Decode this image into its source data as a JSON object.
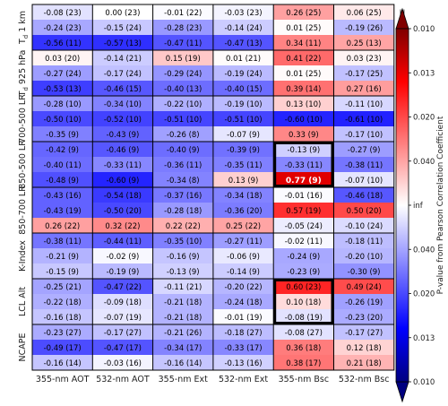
{
  "chart_data": {
    "type": "heatmap",
    "columns": [
      "355-nm AOT",
      "532-nm AOT",
      "355-nm Ext",
      "532-nm Ext",
      "355-nm Bsc",
      "532-nm Bsc"
    ],
    "groups": [
      {
        "label": "T_d 1 km",
        "label_main": "T",
        "label_sub": "d",
        "label_rest": " 1 km"
      },
      {
        "label": "T_d 925 hPa",
        "label_main": "T",
        "label_sub": "d",
        "label_rest": " 925 hPa"
      },
      {
        "label": "700-500 LR"
      },
      {
        "label": "850-500 LR"
      },
      {
        "label": "850-700 LR"
      },
      {
        "label": "K-Index"
      },
      {
        "label": "LCL Alt"
      },
      {
        "label": "NCAPE"
      }
    ],
    "levels": [
      "H",
      "M",
      "L"
    ],
    "cells": [
      [
        [
          -0.08,
          23
        ],
        [
          0.0,
          23
        ],
        [
          -0.01,
          22
        ],
        [
          -0.03,
          23
        ],
        [
          0.26,
          25
        ],
        [
          0.06,
          25
        ]
      ],
      [
        [
          -0.24,
          23
        ],
        [
          -0.15,
          24
        ],
        [
          -0.28,
          23
        ],
        [
          -0.14,
          24
        ],
        [
          0.01,
          25
        ],
        [
          -0.19,
          26
        ]
      ],
      [
        [
          -0.56,
          11
        ],
        [
          -0.57,
          13
        ],
        [
          -0.47,
          11
        ],
        [
          -0.47,
          13
        ],
        [
          0.34,
          11
        ],
        [
          0.25,
          13
        ]
      ],
      [
        [
          0.03,
          20
        ],
        [
          -0.14,
          21
        ],
        [
          0.15,
          19
        ],
        [
          0.01,
          21
        ],
        [
          0.41,
          22
        ],
        [
          0.03,
          23
        ]
      ],
      [
        [
          -0.27,
          24
        ],
        [
          -0.17,
          24
        ],
        [
          -0.29,
          24
        ],
        [
          -0.19,
          24
        ],
        [
          0.01,
          25
        ],
        [
          -0.17,
          25
        ]
      ],
      [
        [
          -0.53,
          13
        ],
        [
          -0.46,
          15
        ],
        [
          -0.4,
          13
        ],
        [
          -0.4,
          15
        ],
        [
          0.39,
          14
        ],
        [
          0.27,
          16
        ]
      ],
      [
        [
          -0.28,
          10
        ],
        [
          -0.34,
          10
        ],
        [
          -0.22,
          10
        ],
        [
          -0.19,
          10
        ],
        [
          0.13,
          10
        ],
        [
          -0.11,
          10
        ]
      ],
      [
        [
          -0.5,
          10
        ],
        [
          -0.52,
          10
        ],
        [
          -0.51,
          10
        ],
        [
          -0.51,
          10
        ],
        [
          -0.6,
          10
        ],
        [
          -0.61,
          10
        ]
      ],
      [
        [
          -0.35,
          9
        ],
        [
          -0.43,
          9
        ],
        [
          -0.26,
          8
        ],
        [
          -0.07,
          9
        ],
        [
          0.33,
          9
        ],
        [
          -0.17,
          10
        ]
      ],
      [
        [
          -0.42,
          9
        ],
        [
          -0.46,
          9
        ],
        [
          -0.4,
          9
        ],
        [
          -0.39,
          9
        ],
        [
          -0.13,
          9
        ],
        [
          -0.27,
          9
        ]
      ],
      [
        [
          -0.4,
          11
        ],
        [
          -0.33,
          11
        ],
        [
          -0.36,
          11
        ],
        [
          -0.35,
          11
        ],
        [
          -0.33,
          11
        ],
        [
          -0.38,
          11
        ]
      ],
      [
        [
          -0.48,
          9
        ],
        [
          -0.6,
          9
        ],
        [
          -0.34,
          8
        ],
        [
          0.13,
          9
        ],
        [
          0.77,
          9
        ],
        [
          -0.07,
          10
        ]
      ],
      [
        [
          -0.43,
          16
        ],
        [
          -0.54,
          18
        ],
        [
          -0.37,
          16
        ],
        [
          -0.34,
          18
        ],
        [
          -0.01,
          16
        ],
        [
          -0.46,
          18
        ]
      ],
      [
        [
          -0.43,
          19
        ],
        [
          -0.5,
          20
        ],
        [
          -0.28,
          18
        ],
        [
          -0.36,
          20
        ],
        [
          0.57,
          19
        ],
        [
          0.5,
          20
        ]
      ],
      [
        [
          0.26,
          22
        ],
        [
          0.32,
          22
        ],
        [
          0.22,
          22
        ],
        [
          0.25,
          22
        ],
        [
          -0.05,
          24
        ],
        [
          -0.1,
          24
        ]
      ],
      [
        [
          -0.38,
          11
        ],
        [
          -0.44,
          11
        ],
        [
          -0.35,
          10
        ],
        [
          -0.27,
          11
        ],
        [
          -0.02,
          11
        ],
        [
          -0.18,
          11
        ]
      ],
      [
        [
          -0.21,
          9
        ],
        [
          -0.02,
          9
        ],
        [
          -0.16,
          9
        ],
        [
          -0.06,
          9
        ],
        [
          -0.24,
          9
        ],
        [
          -0.2,
          10
        ]
      ],
      [
        [
          -0.15,
          9
        ],
        [
          -0.19,
          9
        ],
        [
          -0.13,
          9
        ],
        [
          -0.14,
          9
        ],
        [
          -0.23,
          9
        ],
        [
          -0.3,
          9
        ]
      ],
      [
        [
          -0.25,
          21
        ],
        [
          -0.47,
          22
        ],
        [
          -0.11,
          21
        ],
        [
          -0.2,
          22
        ],
        [
          0.6,
          23
        ],
        [
          0.49,
          24
        ]
      ],
      [
        [
          -0.22,
          18
        ],
        [
          -0.09,
          18
        ],
        [
          -0.21,
          18
        ],
        [
          -0.24,
          18
        ],
        [
          0.1,
          18
        ],
        [
          -0.26,
          19
        ]
      ],
      [
        [
          -0.16,
          18
        ],
        [
          -0.07,
          19
        ],
        [
          -0.21,
          18
        ],
        [
          -0.01,
          19
        ],
        [
          -0.08,
          19
        ],
        [
          -0.23,
          20
        ]
      ],
      [
        [
          -0.23,
          27
        ],
        [
          -0.17,
          27
        ],
        [
          -0.21,
          26
        ],
        [
          -0.18,
          27
        ],
        [
          -0.08,
          27
        ],
        [
          -0.17,
          27
        ]
      ],
      [
        [
          -0.49,
          17
        ],
        [
          -0.47,
          17
        ],
        [
          -0.34,
          17
        ],
        [
          -0.33,
          17
        ],
        [
          0.36,
          18
        ],
        [
          0.12,
          18
        ]
      ],
      [
        [
          -0.16,
          14
        ],
        [
          -0.03,
          16
        ],
        [
          -0.16,
          14
        ],
        [
          -0.13,
          16
        ],
        [
          0.38,
          17
        ],
        [
          0.21,
          18
        ]
      ]
    ],
    "highlighted_boxes": [
      {
        "col": 4,
        "row_start": 9,
        "row_end": 11
      },
      {
        "col": 4,
        "row_start": 18,
        "row_end": 20
      }
    ],
    "bold_cells": [
      [
        11,
        4
      ]
    ],
    "colorbar": {
      "label": "P-value from Pearson Correlation Coefficient",
      "ticks": [
        "0.010",
        "0.013",
        "0.020",
        "0.040",
        "inf",
        "0.040",
        "0.020",
        "0.013",
        "0.010"
      ],
      "range": [
        -1,
        1
      ],
      "colormap": "seismic",
      "extend": "both"
    }
  }
}
